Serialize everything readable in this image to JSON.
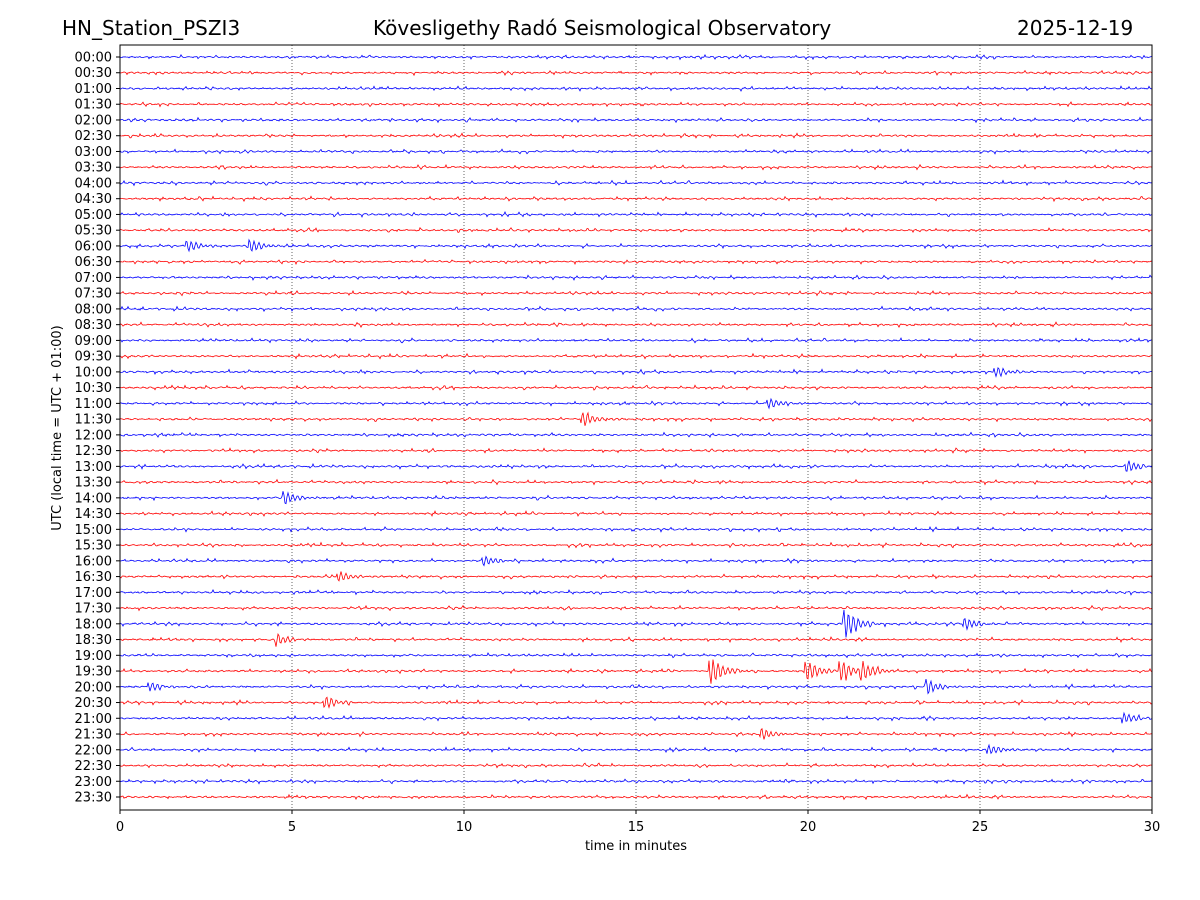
{
  "chart_data": {
    "type": "line",
    "title_left": "HN_Station_PSZI3",
    "title_center": "Kövesligethy Radó Seismological Observatory",
    "title_right": "2025-12-19",
    "xlabel": "time in minutes",
    "ylabel": "UTC (local time = UTC + 01:00)",
    "xlim": [
      0,
      30
    ],
    "xticks": [
      "0",
      "5",
      "10",
      "15",
      "20",
      "25",
      "30"
    ],
    "grid": "vertical dotted",
    "row_labels": [
      "00:00",
      "00:30",
      "01:00",
      "01:30",
      "02:00",
      "02:30",
      "03:00",
      "03:30",
      "04:00",
      "04:30",
      "05:00",
      "05:30",
      "06:00",
      "06:30",
      "07:00",
      "07:30",
      "08:00",
      "08:30",
      "09:00",
      "09:30",
      "10:00",
      "10:30",
      "11:00",
      "11:30",
      "12:00",
      "12:30",
      "13:00",
      "13:30",
      "14:00",
      "14:30",
      "15:00",
      "15:30",
      "16:00",
      "16:30",
      "17:00",
      "17:30",
      "18:00",
      "18:30",
      "19:00",
      "19:30",
      "20:00",
      "20:30",
      "21:00",
      "21:30",
      "22:00",
      "22:30",
      "23:00",
      "23:30"
    ],
    "colors": [
      "#0000ff",
      "#ff0000"
    ],
    "events": [
      {
        "row": "06:00",
        "minute": 2.0,
        "amp": 0.35
      },
      {
        "row": "06:00",
        "minute": 3.8,
        "amp": 0.4
      },
      {
        "row": "10:00",
        "minute": 25.5,
        "amp": 0.3
      },
      {
        "row": "11:00",
        "minute": 18.9,
        "amp": 0.3
      },
      {
        "row": "11:30",
        "minute": 13.5,
        "amp": 0.4
      },
      {
        "row": "13:00",
        "minute": 29.3,
        "amp": 0.35
      },
      {
        "row": "14:00",
        "minute": 4.8,
        "amp": 0.4
      },
      {
        "row": "16:00",
        "minute": 10.6,
        "amp": 0.3
      },
      {
        "row": "16:30",
        "minute": 6.4,
        "amp": 0.3
      },
      {
        "row": "18:00",
        "minute": 21.1,
        "amp": 0.9
      },
      {
        "row": "18:00",
        "minute": 24.6,
        "amp": 0.35
      },
      {
        "row": "18:30",
        "minute": 4.6,
        "amp": 0.35
      },
      {
        "row": "19:30",
        "minute": 17.2,
        "amp": 0.85
      },
      {
        "row": "19:30",
        "minute": 20.0,
        "amp": 0.6
      },
      {
        "row": "19:30",
        "minute": 21.0,
        "amp": 0.6
      },
      {
        "row": "19:30",
        "minute": 21.6,
        "amp": 0.5
      },
      {
        "row": "20:00",
        "minute": 23.5,
        "amp": 0.45
      },
      {
        "row": "20:00",
        "minute": 0.9,
        "amp": 0.3
      },
      {
        "row": "20:30",
        "minute": 6.0,
        "amp": 0.4
      },
      {
        "row": "21:00",
        "minute": 29.2,
        "amp": 0.35
      },
      {
        "row": "21:30",
        "minute": 18.7,
        "amp": 0.35
      },
      {
        "row": "22:00",
        "minute": 25.3,
        "amp": 0.3
      }
    ]
  }
}
